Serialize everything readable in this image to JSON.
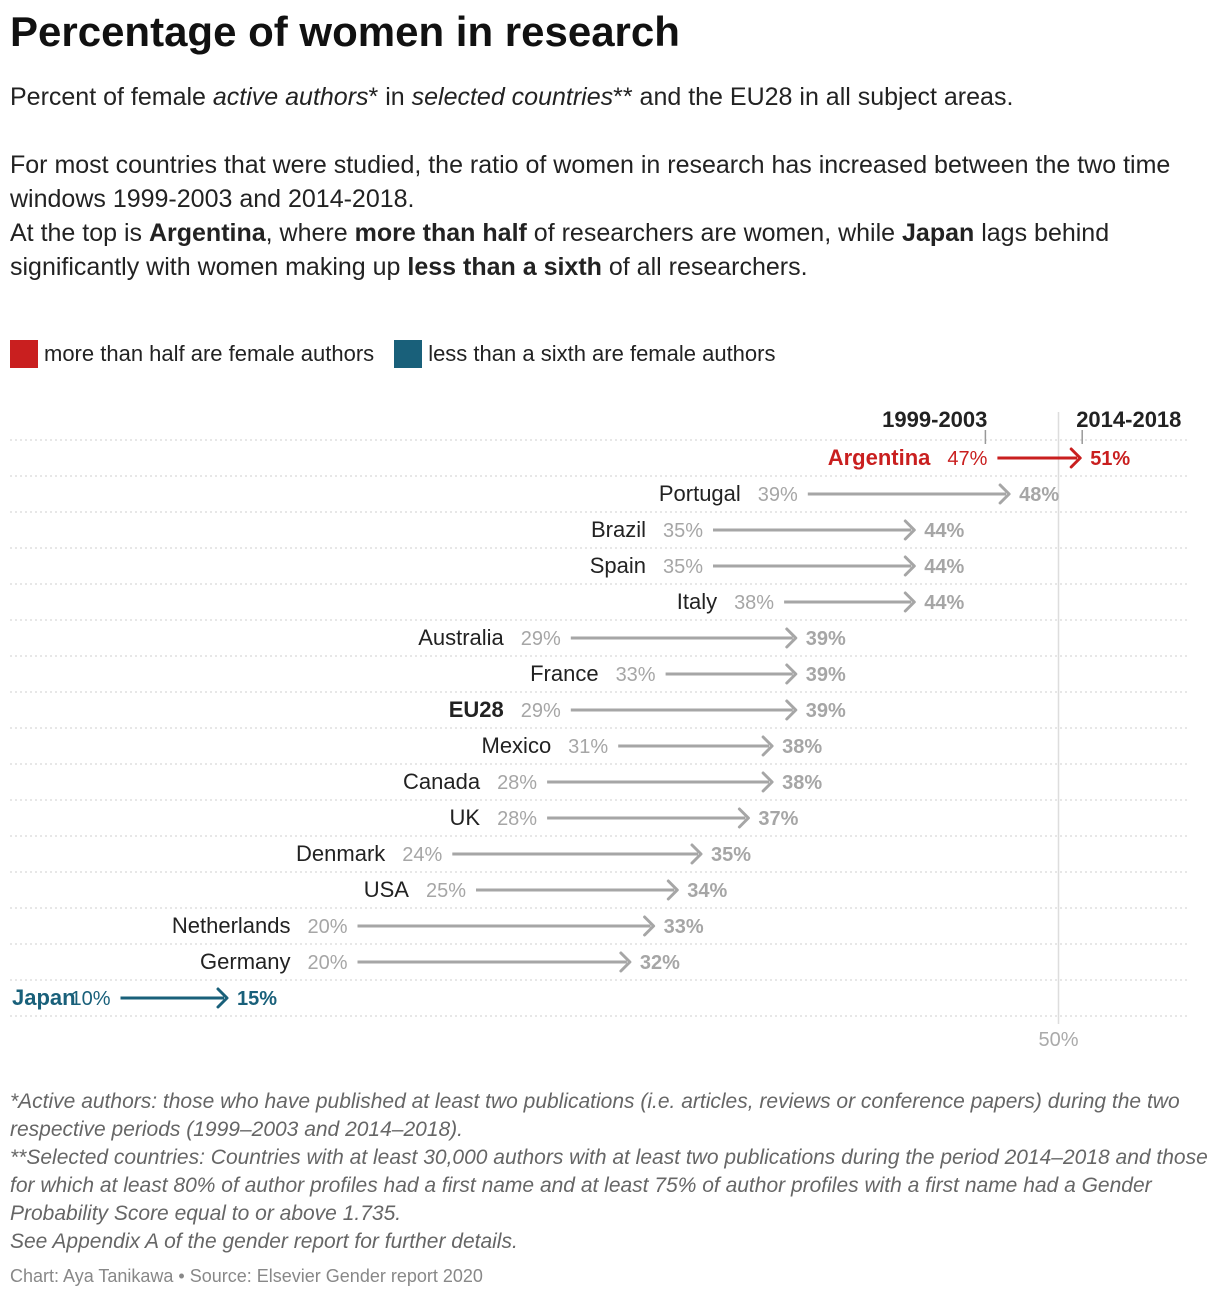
{
  "header": {
    "title": "Percentage of women in research",
    "subtitle": {
      "a": "Percent of female ",
      "b": "active authors",
      "c": "* in ",
      "d": "selected countries",
      "e": "** and the EU28 in all subject areas."
    },
    "description": {
      "line1": "For most countries that were studied, the ratio of women in research has increased between the two time windows 1999-2003 and 2014-2018.",
      "a": "At the top is ",
      "b": "Argentina",
      "c": ", where ",
      "d": "more than half",
      "e": " of researchers are women, while ",
      "f": "Japan",
      "g": " lags behind significantly with women making up ",
      "h": "less than a sixth",
      "i": " of all researchers."
    }
  },
  "legend": {
    "items": [
      {
        "label": "more than half are female authors",
        "color": "#c91f1f"
      },
      {
        "label": "less than a sixth are female authors",
        "color": "#19607a"
      }
    ]
  },
  "chart_data": {
    "type": "arrow",
    "series": [
      {
        "name": "1999-2003"
      },
      {
        "name": "2014-2018"
      }
    ],
    "categories": [
      "Argentina",
      "Portugal",
      "Brazil",
      "Spain",
      "Italy",
      "Australia",
      "France",
      "EU28",
      "Mexico",
      "Canada",
      "UK",
      "Denmark",
      "USA",
      "Netherlands",
      "Germany",
      "Japan"
    ],
    "values_1999_2003": [
      47,
      39,
      35,
      35,
      38,
      29,
      33,
      29,
      31,
      28,
      28,
      24,
      25,
      20,
      20,
      10
    ],
    "values_2014_2018": [
      51,
      48,
      44,
      44,
      44,
      39,
      39,
      39,
      38,
      38,
      37,
      35,
      34,
      33,
      32,
      15
    ],
    "highlight": {
      "Argentina": "#c91f1f",
      "Japan": "#19607a"
    },
    "bold_categories": [
      "EU28"
    ],
    "reference_line": {
      "value": 50,
      "label": "50%"
    },
    "default_color": "#a6a6a6",
    "label_suffix": "%"
  },
  "notes": {
    "line1": "*Active authors: those who have published at least two publications (i.e. articles, reviews or conference papers) during the two respective periods (1999–2003 and 2014–2018).",
    "line2": "**Selected countries: Countries with at least 30,000 authors with at least two publications during the period 2014–2018 and those for which at least 80% of author profiles had a first name and at least 75% of author profiles with a first name had a Gender Probability Score equal to or above 1.735.",
    "line3": "See Appendix A of the gender report for further details."
  },
  "credit": "Chart: Aya Tanikawa • Source: Elsevier Gender report 2020"
}
